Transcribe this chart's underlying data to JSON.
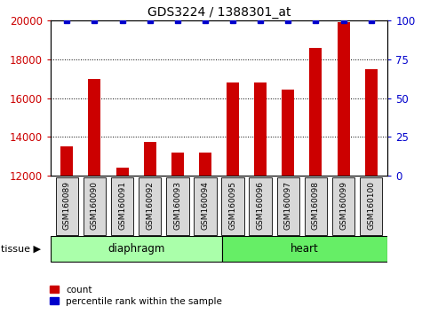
{
  "title": "GDS3224 / 1388301_at",
  "samples": [
    "GSM160089",
    "GSM160090",
    "GSM160091",
    "GSM160092",
    "GSM160093",
    "GSM160094",
    "GSM160095",
    "GSM160096",
    "GSM160097",
    "GSM160098",
    "GSM160099",
    "GSM160100"
  ],
  "counts": [
    13500,
    17000,
    12400,
    13750,
    13200,
    13200,
    16800,
    16800,
    16450,
    18600,
    19900,
    17500
  ],
  "percentile_values": [
    100,
    100,
    100,
    100,
    100,
    100,
    100,
    100,
    100,
    100,
    100,
    100
  ],
  "ylim_left": [
    12000,
    20000
  ],
  "yticks_left": [
    12000,
    14000,
    16000,
    18000,
    20000
  ],
  "ylim_right": [
    0,
    100
  ],
  "yticks_right": [
    0,
    25,
    50,
    75,
    100
  ],
  "bar_color": "#CC0000",
  "dot_color": "#0000CC",
  "bar_width": 0.45,
  "tick_label_color_left": "#CC0000",
  "tick_label_color_right": "#0000CC",
  "diaphragm_color_light": "#ccffcc",
  "diaphragm_color_dark": "#88ee88",
  "heart_color": "#66dd66",
  "xlabel_bg": "#d8d8d8",
  "grid_style": "dotted"
}
